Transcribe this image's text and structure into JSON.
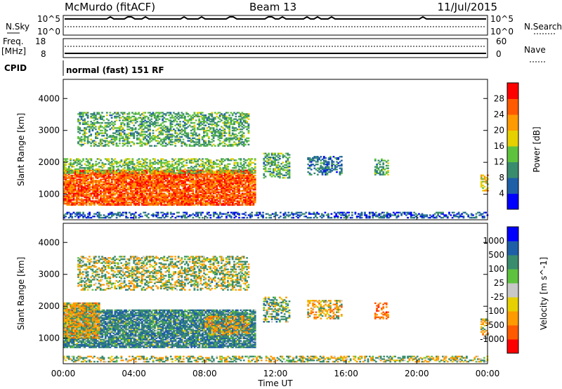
{
  "header": {
    "station": "McMurdo (fitACF)",
    "beam": "Beam 13",
    "date": "11/Jul/2015"
  },
  "strip": {
    "nsky_label": "N.Sky",
    "nsky_ticks": [
      "10^5",
      "10^0"
    ],
    "nsearch_label": "N.Search",
    "nsearch_ticks": [
      "10^5",
      "10^0"
    ],
    "freq_label": "Freq.",
    "freq_unit": "[MHz]",
    "freq_ticks": [
      "18",
      "8"
    ],
    "nave_label": "Nave",
    "nave_ticks": [
      "60",
      "0"
    ],
    "cpid_label": "CPID",
    "cpid_text": "normal (fast) 151 RF"
  },
  "chart_data": [
    {
      "type": "heatmap",
      "title": "",
      "xlabel": "Time UT",
      "ylabel": "Slant Range [km]",
      "x_ticks": [
        "00:00",
        "04:00",
        "08:00",
        "12:00",
        "16:00",
        "20:00",
        "00:00"
      ],
      "y_ticks": [
        "1000",
        "2000",
        "3000",
        "4000"
      ],
      "ylim": [
        200,
        4600
      ],
      "colorbar_label": "Power [dB]",
      "colorbar_ticks": [
        "28",
        "24",
        "20",
        "16",
        "12",
        "8",
        "4"
      ],
      "colors": [
        "#0000ff",
        "#1f5fa8",
        "#3a8c6e",
        "#5fc23f",
        "#e6d000",
        "#ff9a00",
        "#ff5a00",
        "#ff0000"
      ],
      "regions": [
        {
          "t0": 0.0,
          "t1": 10.8,
          "r0": 650,
          "r1": 1750,
          "value": 26
        },
        {
          "t0": 0.0,
          "t1": 10.8,
          "r0": 1650,
          "r1": 2100,
          "value": 14
        },
        {
          "t0": 0.8,
          "t1": 10.5,
          "r0": 2500,
          "r1": 3550,
          "value": 12
        },
        {
          "t0": 11.3,
          "t1": 12.8,
          "r0": 1500,
          "r1": 2300,
          "value": 12
        },
        {
          "t0": 13.8,
          "t1": 15.7,
          "r0": 1600,
          "r1": 2200,
          "value": 8
        },
        {
          "t0": 17.6,
          "t1": 18.4,
          "r0": 1600,
          "r1": 2100,
          "value": 12
        },
        {
          "t0": 23.6,
          "t1": 24.0,
          "r0": 1100,
          "r1": 1600,
          "value": 20
        },
        {
          "t0": 0.0,
          "t1": 24.0,
          "r0": 250,
          "r1": 450,
          "value": 6
        }
      ]
    },
    {
      "type": "heatmap",
      "title": "",
      "xlabel": "Time UT",
      "ylabel": "Slant Range [km]",
      "x_ticks": [
        "00:00",
        "04:00",
        "08:00",
        "12:00",
        "16:00",
        "20:00",
        "00:00"
      ],
      "y_ticks": [
        "1000",
        "2000",
        "3000",
        "4000"
      ],
      "ylim": [
        200,
        4600
      ],
      "colorbar_label": "Velocity [m s^-1]",
      "colorbar_ticks": [
        "1000",
        "500",
        "100",
        "25",
        "-25",
        "-100",
        "-500",
        "-1000"
      ],
      "colors": [
        "#ff0000",
        "#ff5a00",
        "#ff9a00",
        "#e6d000",
        "#c8c8c8",
        "#5fc23f",
        "#3a8c6e",
        "#1f5fa8",
        "#0000ff"
      ],
      "regions": [
        {
          "t0": 0.0,
          "t1": 10.8,
          "r0": 700,
          "r1": 1900,
          "value": 400
        },
        {
          "t0": 0.0,
          "t1": 2.0,
          "r0": 1000,
          "r1": 2100,
          "value": -150
        },
        {
          "t0": 8.0,
          "t1": 10.5,
          "r0": 1100,
          "r1": 1700,
          "value": -150
        },
        {
          "t0": 0.8,
          "t1": 10.5,
          "r0": 2500,
          "r1": 3550,
          "value": 60
        },
        {
          "t0": 11.3,
          "t1": 12.8,
          "r0": 1500,
          "r1": 2300,
          "value": 200
        },
        {
          "t0": 13.8,
          "t1": 15.7,
          "r0": 1600,
          "r1": 2200,
          "value": -150
        },
        {
          "t0": 17.6,
          "t1": 18.4,
          "r0": 1600,
          "r1": 2100,
          "value": -600
        },
        {
          "t0": 23.6,
          "t1": 24.0,
          "r0": 1100,
          "r1": 1600,
          "value": -150
        },
        {
          "t0": 0.0,
          "t1": 24.0,
          "r0": 250,
          "r1": 450,
          "value": 30
        }
      ]
    }
  ]
}
